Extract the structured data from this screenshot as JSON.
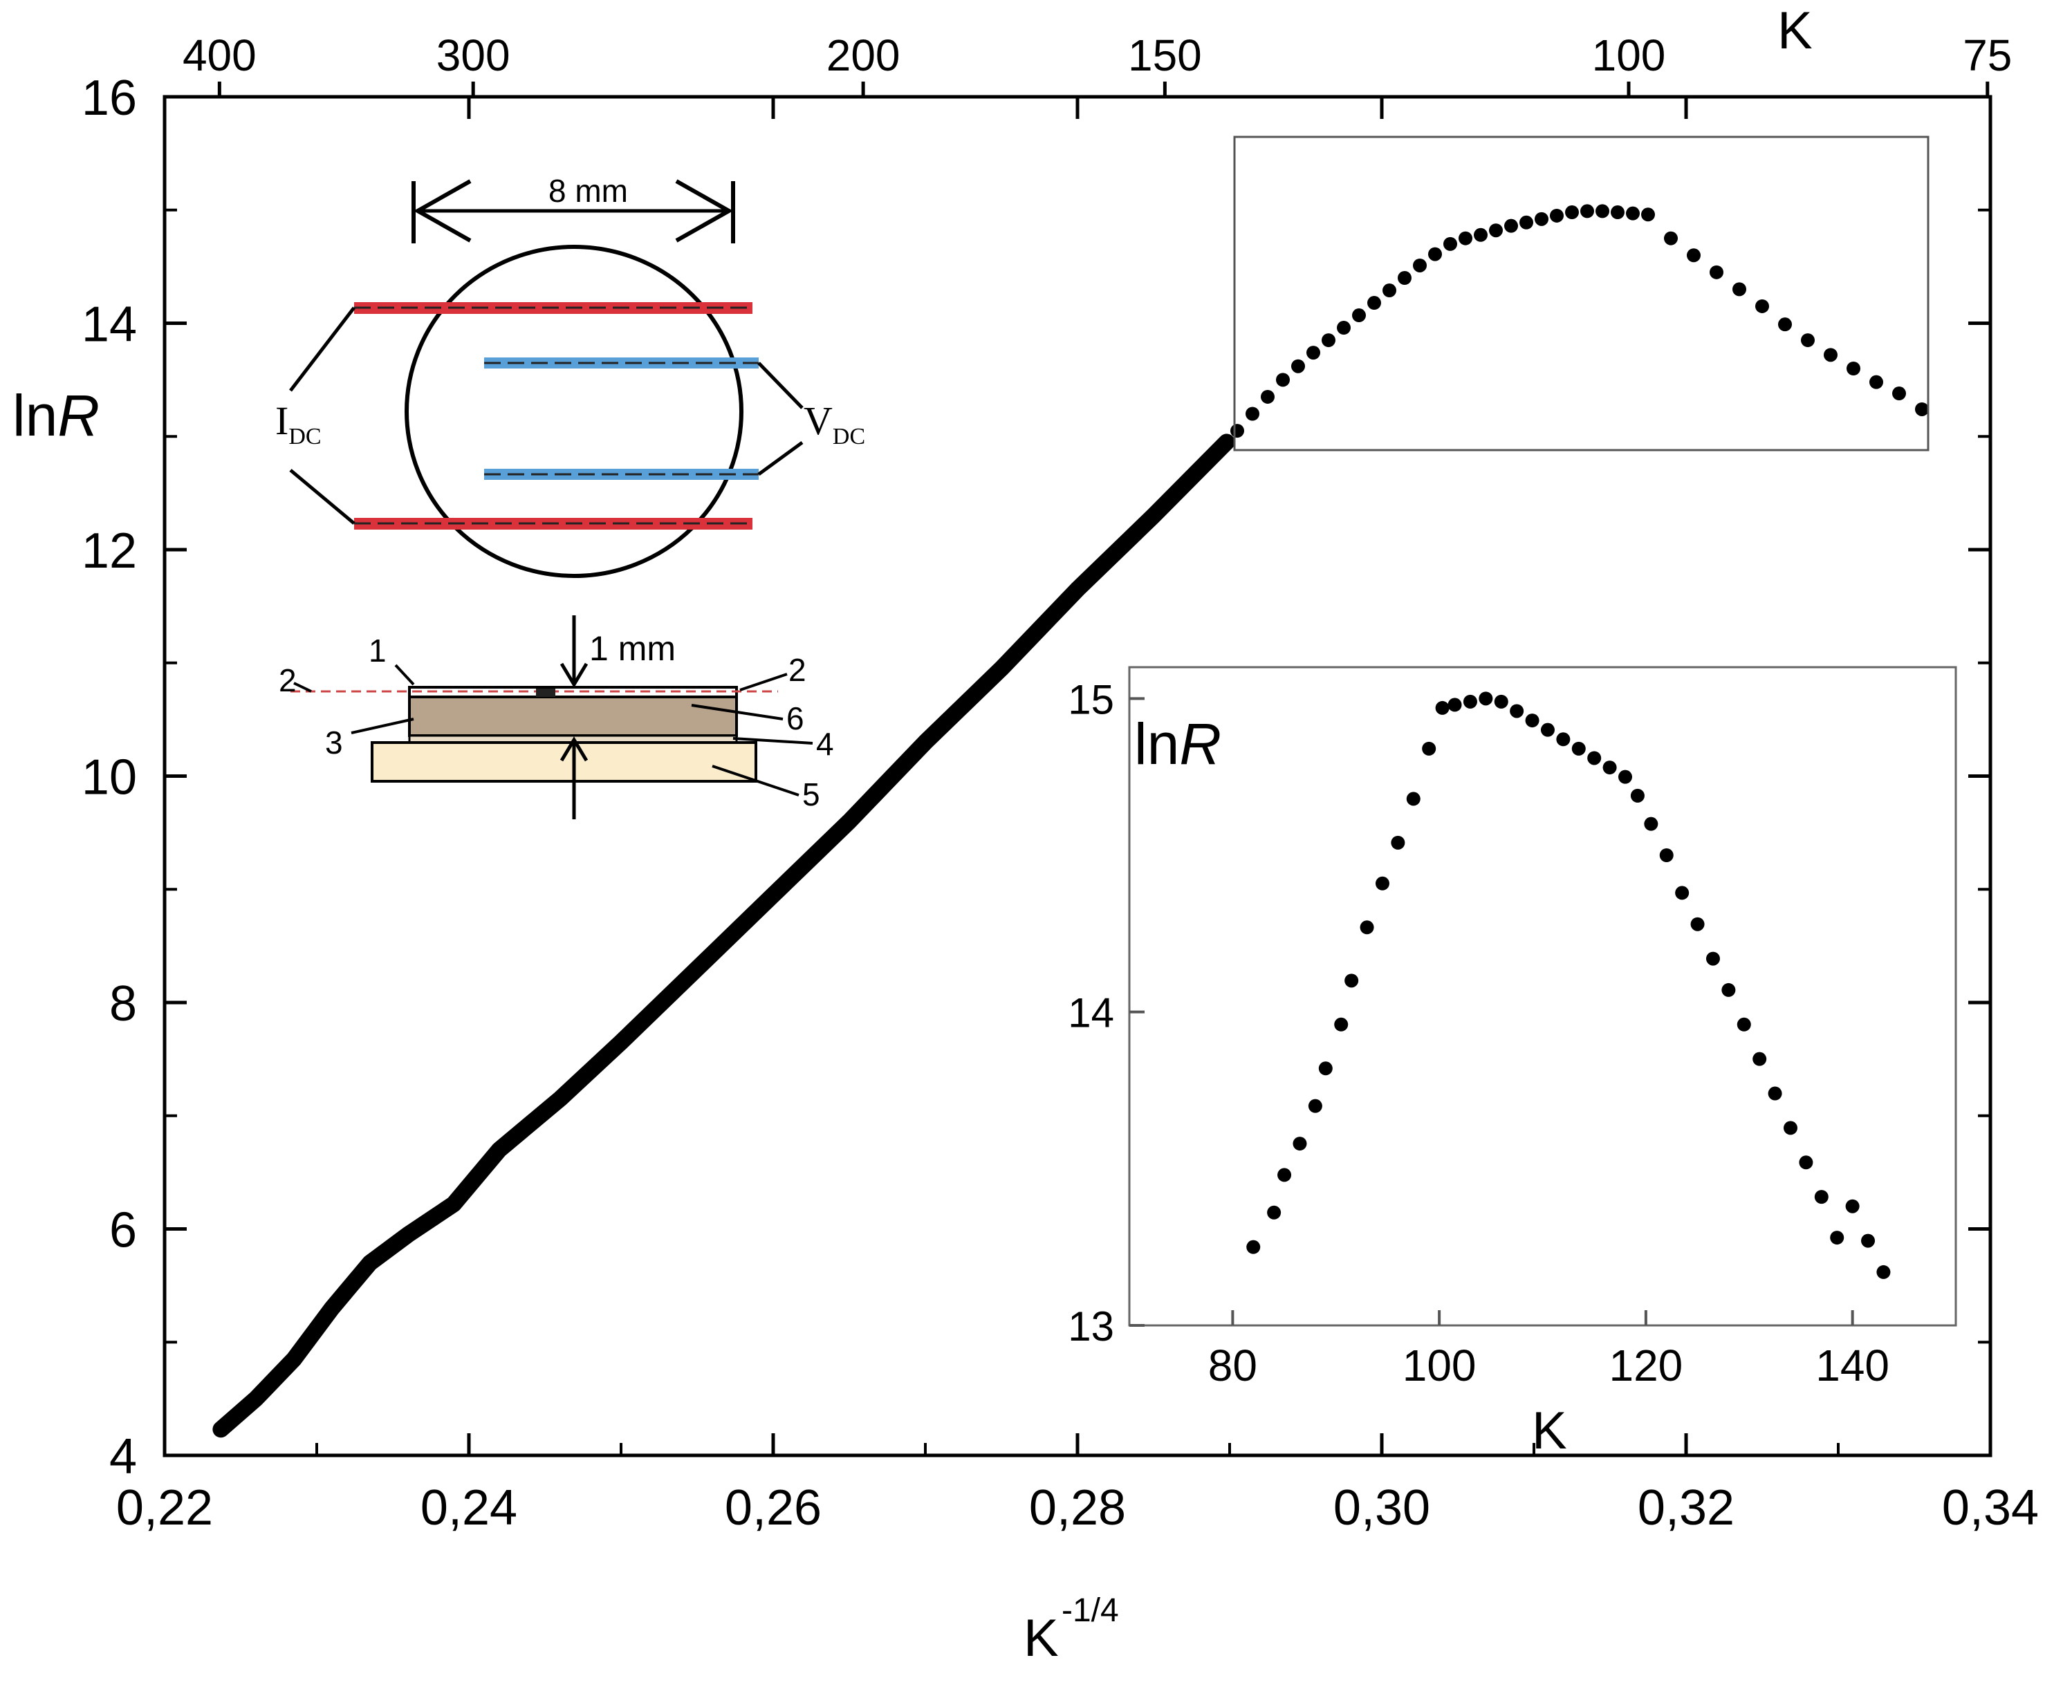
{
  "chart_data": [
    {
      "type": "scatter",
      "name": "main",
      "xlabel": "K",
      "xlabel_superscript": "-1/4",
      "ylabel": "ln",
      "ylabel_italic": "R",
      "x_ticks": [
        "0,22",
        "0,24",
        "0,26",
        "0,28",
        "0,30",
        "0,32",
        "0,34"
      ],
      "x_tick_values": [
        0.22,
        0.24,
        0.26,
        0.28,
        0.3,
        0.32,
        0.34
      ],
      "y_ticks": [
        "4",
        "6",
        "8",
        "10",
        "12",
        "14",
        "16"
      ],
      "y_tick_values": [
        4,
        6,
        8,
        10,
        12,
        14,
        16
      ],
      "xlim": [
        0.22,
        0.34
      ],
      "ylim": [
        4,
        16
      ],
      "top_axis_label": "K",
      "top_ticks": [
        "400",
        "300",
        "200",
        "150",
        "100",
        "75"
      ],
      "top_tick_values": [
        400,
        300,
        200,
        150,
        100,
        75
      ],
      "curve_points": [
        [
          0.2237,
          4.23
        ],
        [
          0.226,
          4.5
        ],
        [
          0.2285,
          4.85
        ],
        [
          0.231,
          5.3
        ],
        [
          0.2335,
          5.7
        ],
        [
          0.236,
          5.95
        ],
        [
          0.239,
          6.22
        ],
        [
          0.242,
          6.7
        ],
        [
          0.246,
          7.15
        ],
        [
          0.25,
          7.65
        ],
        [
          0.255,
          8.3
        ],
        [
          0.26,
          8.95
        ],
        [
          0.265,
          9.6
        ],
        [
          0.27,
          10.3
        ],
        [
          0.275,
          10.95
        ],
        [
          0.28,
          11.65
        ],
        [
          0.285,
          12.3
        ],
        [
          0.2898,
          12.95
        ]
      ],
      "points": [
        [
          0.2905,
          13.05
        ],
        [
          0.2915,
          13.2
        ],
        [
          0.2925,
          13.35
        ],
        [
          0.2935,
          13.5
        ],
        [
          0.2945,
          13.62
        ],
        [
          0.2955,
          13.74
        ],
        [
          0.2965,
          13.85
        ],
        [
          0.2975,
          13.96
        ],
        [
          0.2985,
          14.07
        ],
        [
          0.2995,
          14.18
        ],
        [
          0.3005,
          14.29
        ],
        [
          0.3015,
          14.4
        ],
        [
          0.3025,
          14.51
        ],
        [
          0.3035,
          14.61
        ],
        [
          0.3045,
          14.7
        ],
        [
          0.3055,
          14.75
        ],
        [
          0.3065,
          14.78
        ],
        [
          0.3075,
          14.82
        ],
        [
          0.3085,
          14.86
        ],
        [
          0.3095,
          14.89
        ],
        [
          0.3105,
          14.92
        ],
        [
          0.3115,
          14.95
        ],
        [
          0.3125,
          14.98
        ],
        [
          0.3135,
          14.99
        ],
        [
          0.3145,
          14.99
        ],
        [
          0.3155,
          14.98
        ],
        [
          0.3165,
          14.97
        ],
        [
          0.3175,
          14.96
        ],
        [
          0.319,
          14.75
        ],
        [
          0.3205,
          14.6
        ],
        [
          0.322,
          14.45
        ],
        [
          0.3235,
          14.3
        ],
        [
          0.325,
          14.15
        ],
        [
          0.3265,
          13.99
        ],
        [
          0.328,
          13.85
        ],
        [
          0.3295,
          13.72
        ],
        [
          0.331,
          13.6
        ],
        [
          0.3325,
          13.48
        ],
        [
          0.334,
          13.38
        ],
        [
          0.3355,
          13.24
        ]
      ]
    },
    {
      "type": "scatter",
      "name": "inset",
      "xlabel": "K",
      "ylabel": "ln",
      "ylabel_italic": "R",
      "x_ticks": [
        "80",
        "100",
        "120",
        "140"
      ],
      "x_tick_values": [
        80,
        100,
        120,
        140
      ],
      "y_ticks": [
        "13",
        "14",
        "15"
      ],
      "y_tick_values": [
        13,
        14,
        15
      ],
      "xlim": [
        70,
        150
      ],
      "ylim": [
        13,
        15.1
      ],
      "points": [
        [
          82,
          13.25
        ],
        [
          84,
          13.36
        ],
        [
          85,
          13.48
        ],
        [
          86.5,
          13.58
        ],
        [
          88,
          13.7
        ],
        [
          89,
          13.82
        ],
        [
          90.5,
          13.96
        ],
        [
          91.5,
          14.1
        ],
        [
          93,
          14.27
        ],
        [
          94.5,
          14.41
        ],
        [
          96,
          14.54
        ],
        [
          97.5,
          14.68
        ],
        [
          99,
          14.84
        ],
        [
          100.3,
          14.97
        ],
        [
          101.5,
          14.98
        ],
        [
          103,
          14.99
        ],
        [
          104.5,
          15.0
        ],
        [
          106,
          14.99
        ],
        [
          107.5,
          14.96
        ],
        [
          109,
          14.93
        ],
        [
          110.5,
          14.9
        ],
        [
          112,
          14.87
        ],
        [
          113.5,
          14.84
        ],
        [
          115,
          14.81
        ],
        [
          116.5,
          14.78
        ],
        [
          118,
          14.75
        ],
        [
          119.2,
          14.69
        ],
        [
          120.5,
          14.6
        ],
        [
          122,
          14.5
        ],
        [
          123.5,
          14.38
        ],
        [
          125,
          14.28
        ],
        [
          126.5,
          14.17
        ],
        [
          128,
          14.07
        ],
        [
          129.5,
          13.96
        ],
        [
          131,
          13.85
        ],
        [
          132.5,
          13.74
        ],
        [
          134,
          13.63
        ],
        [
          135.5,
          13.52
        ],
        [
          137,
          13.41
        ],
        [
          138.5,
          13.28
        ],
        [
          140,
          13.38
        ],
        [
          141.5,
          13.27
        ],
        [
          143,
          13.17
        ]
      ]
    }
  ],
  "schematic": {
    "width_label": "8 mm",
    "current_label": "I",
    "current_sub": "DC",
    "voltage_label": "V",
    "voltage_sub": "DC",
    "thickness_label": "1 mm",
    "layer_labels": [
      "1",
      "2",
      "2",
      "3",
      "4",
      "5",
      "6"
    ],
    "colors": {
      "current_electrode": "#d9323a",
      "voltage_electrode": "#5aa0d8",
      "sample": "#b8a38c",
      "substrate": "#fbeccb"
    }
  }
}
